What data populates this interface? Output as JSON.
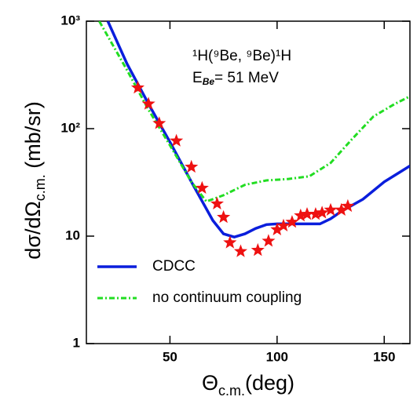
{
  "chart_data": {
    "type": "line",
    "annotations": [
      "¹H(⁹Be, ⁹Be)¹H",
      {
        "main": "E",
        "sub": "Be",
        "rest": "= 51 MeV"
      }
    ],
    "xlabel": {
      "main": "Θ",
      "sub": "c.m.",
      "rest": "(deg)"
    },
    "ylabel": {
      "main": "dσ/dΩ",
      "sub": "c.m.",
      "rest": " (mb/sr)"
    },
    "xlim": [
      11,
      162
    ],
    "xticks": [
      50,
      100,
      150
    ],
    "ylim": [
      1,
      1000
    ],
    "log_y": true,
    "yticks": [
      {
        "value": 1000,
        "label": "10³"
      },
      {
        "value": 100,
        "label": "10²"
      },
      10,
      1
    ],
    "legend": "lower left",
    "series": [
      {
        "name": "CDCC",
        "color": "#0a1edc",
        "style": "solid",
        "x": [
          21,
          30,
          40,
          50,
          60,
          70,
          75,
          80,
          85,
          90,
          95,
          100,
          105,
          110,
          115,
          120,
          125,
          130,
          140,
          150,
          162
        ],
        "values": [
          1000,
          400,
          170,
          75,
          32,
          14,
          10.5,
          9.8,
          10.5,
          11.8,
          12.8,
          13,
          13,
          13,
          13,
          13,
          14.5,
          17,
          22,
          32,
          45
        ]
      },
      {
        "name": "no continuum coupling",
        "color": "#22dd22",
        "style": "dashdot",
        "x": [
          17,
          30,
          40,
          50,
          60,
          67,
          75,
          85,
          95,
          105,
          115,
          125,
          135,
          145,
          155,
          162
        ],
        "values": [
          1000,
          350,
          150,
          70,
          32,
          21,
          24,
          30,
          33,
          34,
          36,
          48,
          80,
          130,
          170,
          200
        ]
      },
      {
        "type": "scatter",
        "marker": "star",
        "color": "#ee1111",
        "x": [
          35,
          40,
          45,
          53,
          60,
          65,
          72,
          75,
          78,
          83,
          91,
          96,
          100,
          103,
          107,
          111,
          114,
          118,
          121,
          125,
          130,
          133
        ],
        "values": [
          240,
          170,
          112,
          77,
          44,
          28,
          20,
          15,
          8.7,
          7.2,
          7.4,
          9,
          11.5,
          12.5,
          13.5,
          15.5,
          16,
          16,
          16.5,
          17.5,
          17.5,
          19
        ]
      }
    ]
  }
}
